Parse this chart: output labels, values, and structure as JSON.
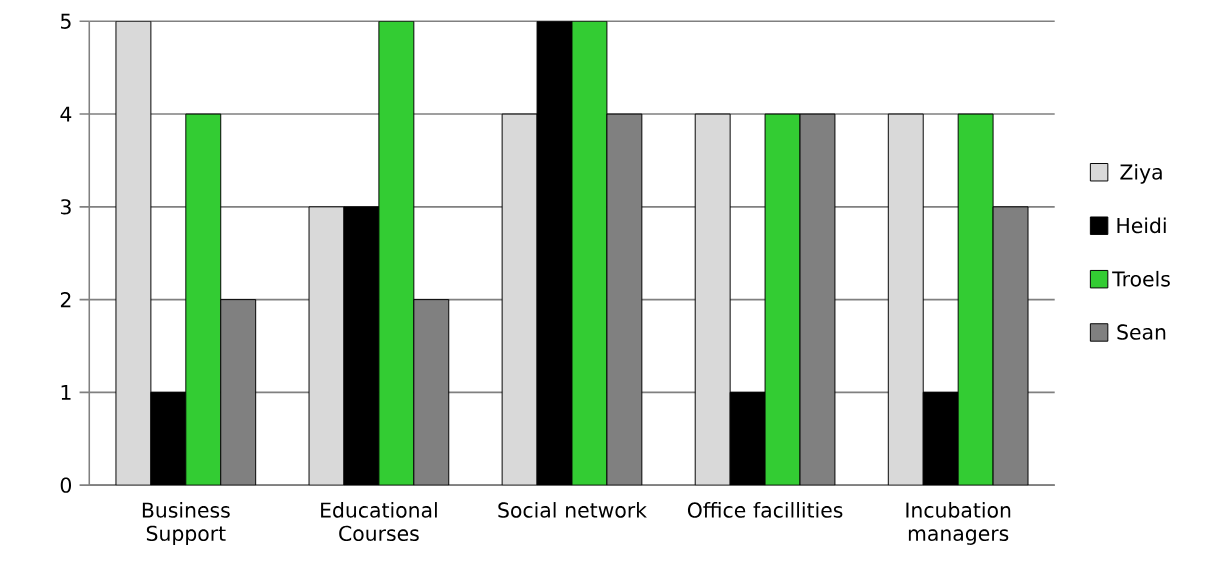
{
  "chart_data": {
    "type": "bar",
    "categories": [
      "Business Support",
      "Educational Courses",
      "Social network",
      "Office facillities",
      "Incubation managers"
    ],
    "series": [
      {
        "name": "Ziya",
        "color": "#d9d9d9",
        "values": [
          5,
          3,
          4,
          4,
          4
        ]
      },
      {
        "name": "Heidi",
        "color": "#000000",
        "values": [
          1,
          3,
          5,
          1,
          1
        ]
      },
      {
        "name": "Troels",
        "color": "#33cc33",
        "values": [
          4,
          5,
          5,
          4,
          4
        ]
      },
      {
        "name": "Sean",
        "color": "#808080",
        "values": [
          2,
          2,
          4,
          4,
          3
        ]
      }
    ],
    "ylim": [
      0,
      5
    ],
    "yticks": [
      0,
      1,
      2,
      3,
      4,
      5
    ],
    "grid": "y",
    "legend": "right"
  }
}
